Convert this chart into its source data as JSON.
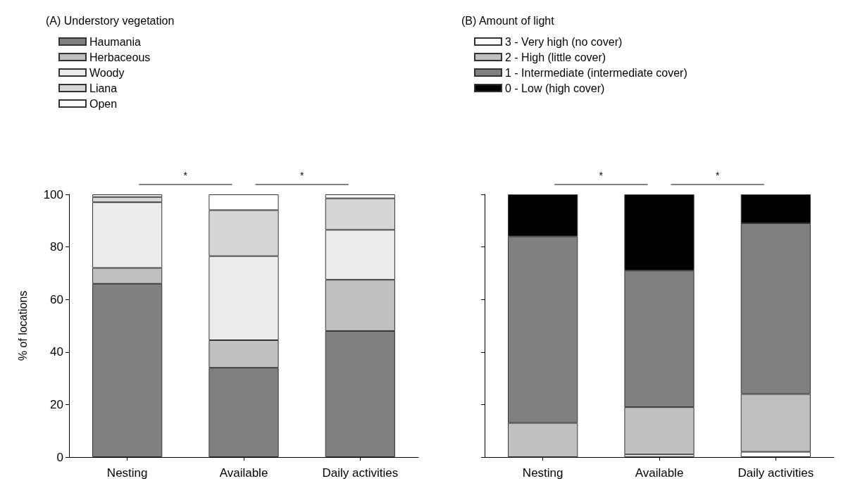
{
  "chart_data": [
    {
      "type": "bar",
      "title": "(A) Understory vegetation",
      "ylabel": "% of locations",
      "categories": [
        "Nesting",
        "Available",
        "Daily activities"
      ],
      "stacked": true,
      "legend": "top left",
      "grid": false,
      "ylim": [
        0,
        100
      ],
      "yticks": [
        0,
        20,
        40,
        60,
        80,
        100
      ],
      "annotations": [
        "*",
        "*"
      ],
      "series": [
        {
          "name": "Haumania",
          "color": "#808080",
          "values": [
            66,
            34,
            48
          ]
        },
        {
          "name": "Herbaceous",
          "color": "#c0c0c0",
          "values": [
            6,
            10.5,
            19.5
          ]
        },
        {
          "name": "Woody",
          "color": "#ececec",
          "values": [
            25,
            32,
            19
          ]
        },
        {
          "name": "Liana",
          "color": "#d6d6d6",
          "values": [
            2,
            17.5,
            12
          ]
        },
        {
          "name": "Open",
          "color": "#ffffff",
          "values": [
            1,
            6,
            1.5
          ]
        }
      ]
    },
    {
      "type": "bar",
      "title": "(B) Amount of light",
      "categories": [
        "Nesting",
        "Available",
        "Daily activities"
      ],
      "stacked": true,
      "legend": "top left",
      "grid": false,
      "ylim": [
        0,
        100
      ],
      "yticks": [
        0,
        20,
        40,
        60,
        80,
        100
      ],
      "tick_labels": "x",
      "annotations": [
        "*",
        "*"
      ],
      "series": [
        {
          "name": "3 - Very high (no cover)",
          "color": "#ffffff",
          "values": [
            0,
            1,
            2
          ]
        },
        {
          "name": "2 - High (little cover)",
          "color": "#c0c0c0",
          "values": [
            13,
            18,
            22
          ]
        },
        {
          "name": "1 - Intermediate (intermediate cover)",
          "color": "#808080",
          "values": [
            71,
            52,
            65
          ]
        },
        {
          "name": "0 - Low (high cover)",
          "color": "#000000",
          "values": [
            16,
            29,
            11
          ]
        }
      ]
    }
  ]
}
